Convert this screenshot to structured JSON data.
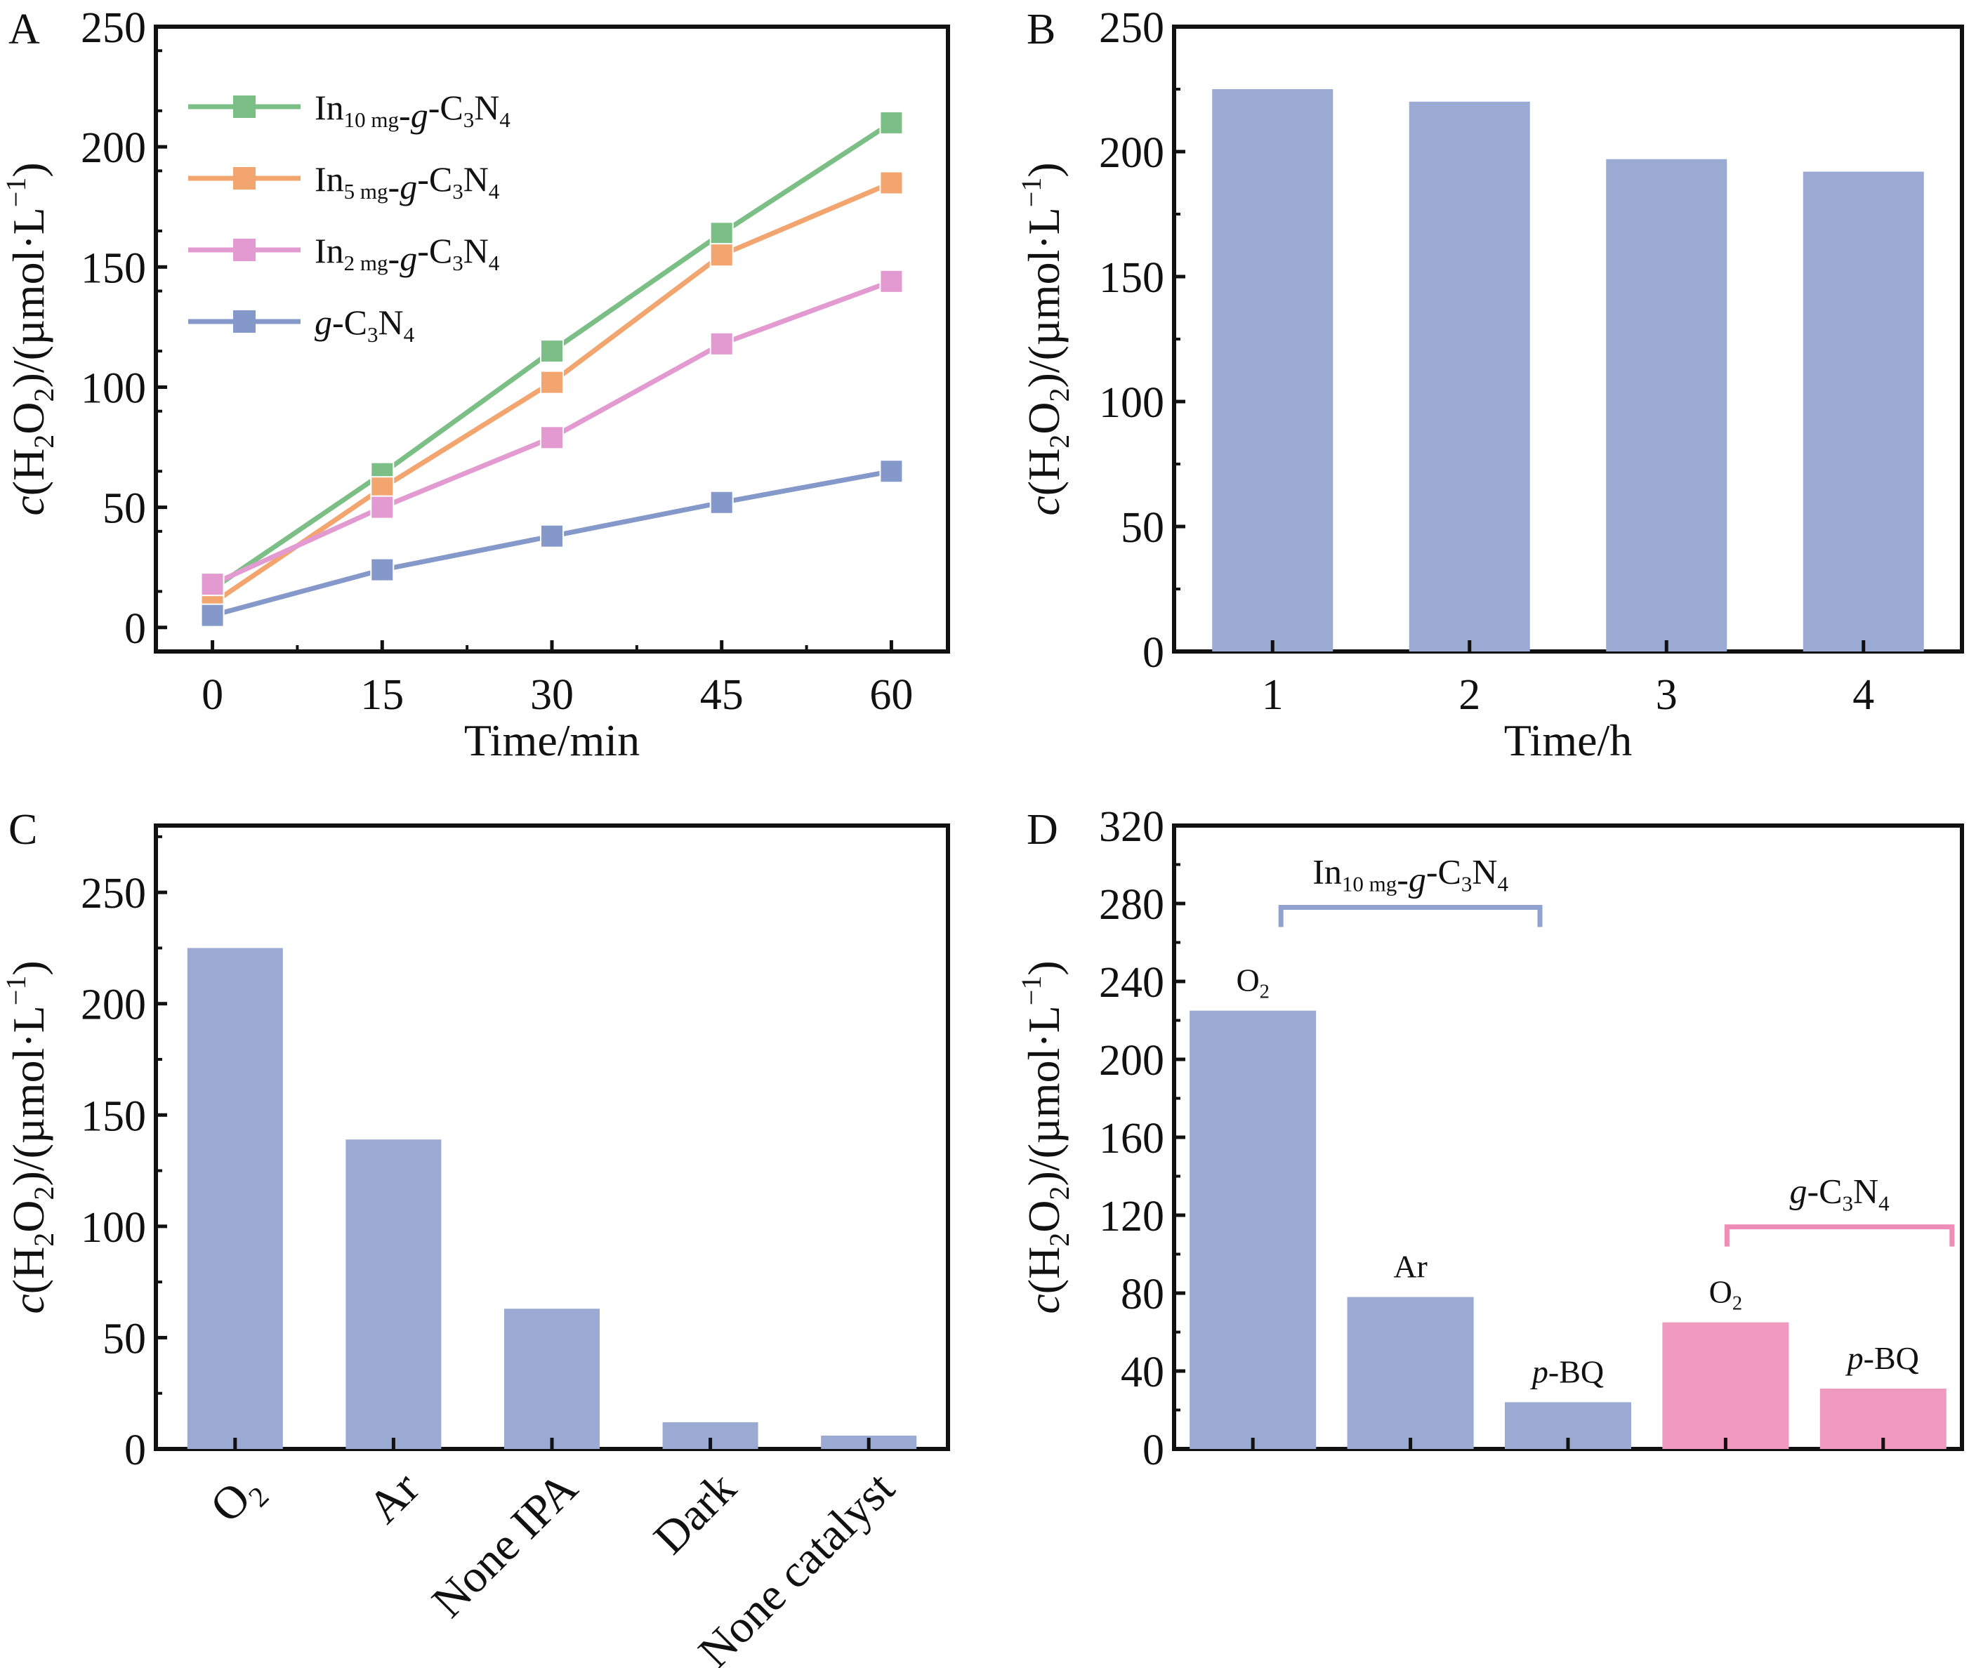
{
  "colors": {
    "green": "#7cbf86",
    "orange": "#f2a56e",
    "pink_line": "#e29ad0",
    "blue_line": "#8499c9",
    "bar_blue": "#9aaad3",
    "bar_pink": "#f19abf",
    "label_blue": "#8fa2d0",
    "label_pink": "#ee8db6",
    "axis": "#111111"
  },
  "chart_data": [
    {
      "panel": "A",
      "type": "line",
      "ylabel": "c(H2O2)/(µmol·L−1)",
      "xlabel": "Time/min",
      "x": [
        0,
        15,
        30,
        45,
        60
      ],
      "xlim": [
        -5,
        65
      ],
      "ylim": [
        -10,
        250
      ],
      "xticks": [
        "0",
        "15",
        "30",
        "45",
        "60"
      ],
      "yticks": [
        "0",
        "50",
        "100",
        "150",
        "200",
        "250"
      ],
      "legend_position": "top-left",
      "series": [
        {
          "name": "In10 mg-g-C3N4",
          "color": "green",
          "values": [
            16,
            64,
            115,
            164,
            210
          ]
        },
        {
          "name": "In5 mg-g-C3N4",
          "color": "orange",
          "values": [
            10,
            58,
            102,
            155,
            185
          ]
        },
        {
          "name": "In2 mg-g-C3N4",
          "color": "pink_line",
          "values": [
            18,
            50,
            79,
            118,
            144
          ]
        },
        {
          "name": "g-C3N4",
          "color": "blue_line",
          "values": [
            5,
            24,
            38,
            52,
            65
          ]
        }
      ]
    },
    {
      "panel": "B",
      "type": "bar",
      "ylabel": "c(H2O2)/(µmol·L−1)",
      "xlabel": "Time/h",
      "categories": [
        "1",
        "2",
        "3",
        "4"
      ],
      "values": [
        225,
        220,
        197,
        192
      ],
      "ylim": [
        0,
        250
      ],
      "yticks": [
        "0",
        "50",
        "100",
        "150",
        "200",
        "250"
      ]
    },
    {
      "panel": "C",
      "type": "bar",
      "ylabel": "c(H2O2)/(µmol·L−1)",
      "categories": [
        "O2",
        "Ar",
        "None IPA",
        "Dark",
        "None catalyst"
      ],
      "values": [
        225,
        139,
        63,
        12,
        6
      ],
      "ylim": [
        0,
        280
      ],
      "yticks": [
        "0",
        "50",
        "100",
        "150",
        "200",
        "250"
      ]
    },
    {
      "panel": "D",
      "type": "bar",
      "ylabel": "c(H2O2)/(µmol·L−1)",
      "categories": [
        "O2",
        "Ar",
        "p-BQ",
        "O2",
        "p-BQ"
      ],
      "values": [
        225,
        78,
        24,
        65,
        31
      ],
      "groups": [
        {
          "name": "In10 mg-g-C3N4",
          "members": [
            0,
            1,
            2
          ],
          "color": "bar_blue"
        },
        {
          "name": "g-C3N4",
          "members": [
            3,
            4
          ],
          "color": "bar_pink"
        }
      ],
      "ylim": [
        0,
        320
      ],
      "yticks": [
        "0",
        "40",
        "80",
        "120",
        "160",
        "200",
        "240",
        "280",
        "320"
      ]
    }
  ]
}
